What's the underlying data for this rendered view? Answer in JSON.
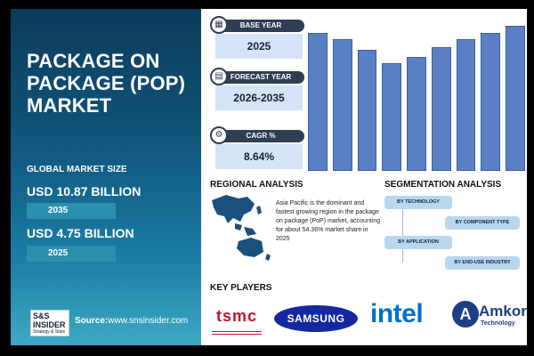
{
  "title": "PACKAGE ON PACKAGE (POP) MARKET",
  "global_market_size_label": "GLOBAL MARKET SIZE",
  "value_2035": "USD 10.87 BILLION",
  "year_2035": "2035",
  "value_2025": "USD 4.75 BILLION",
  "year_2025": "2025",
  "brand": {
    "name": "S&S INSIDER",
    "tagline": "Strategy & Stats"
  },
  "source": {
    "label": "Source:",
    "url": "www.snsinsider.com"
  },
  "cards": [
    {
      "label": "BASE YEAR",
      "value": "2025",
      "icon": "calendar-icon"
    },
    {
      "label": "FORECAST YEAR",
      "value": "2026-2035",
      "icon": "chart-icon"
    },
    {
      "label": "CAGR %",
      "value": "8.64%",
      "icon": "growth-icon"
    }
  ],
  "chart_data": {
    "type": "bar",
    "values": [
      92,
      88,
      81,
      72,
      76,
      83,
      88,
      92,
      97
    ],
    "ylim": [
      0,
      100
    ],
    "color": "#5b7fc4"
  },
  "regional": {
    "title": "REGIONAL ANALYSIS",
    "text": "Asia Pacific is the dominant and fastest growing region in the package on package (PoP) market, accounting for about 54.36% market share in 2025"
  },
  "segmentation": {
    "title": "SEGMENTATION ANALYSIS",
    "items": [
      "BY TECHNOLOGY",
      "BY COMPONENT TYPE",
      "BY APPLICATION",
      "BY END-USE INDUSTRY"
    ]
  },
  "key_players": {
    "title": "KEY PLAYERS",
    "logos": [
      "tsmc",
      "SAMSUNG",
      "intel",
      "Amkor",
      "Technology"
    ]
  }
}
